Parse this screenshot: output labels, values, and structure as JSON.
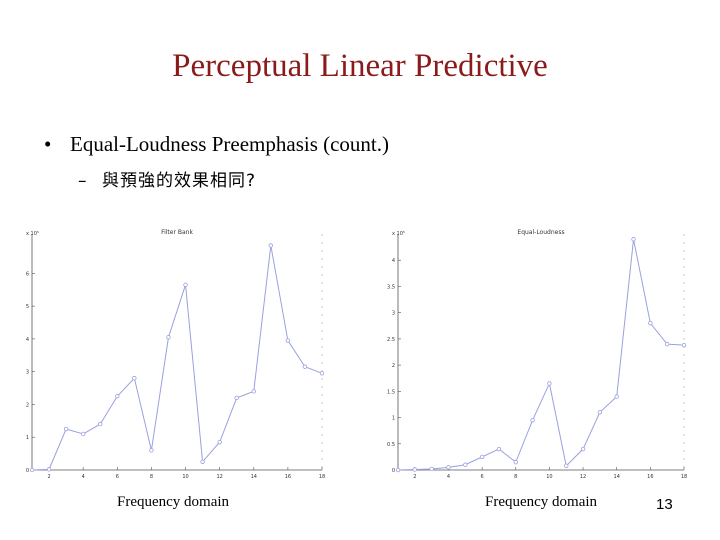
{
  "slide": {
    "title": "Perceptual Linear Predictive",
    "bullet_marker": "•",
    "bullet_text": "Equal-Loudness Preemphasis (count.)",
    "sub_marker": "–",
    "sub_text": "與預強的效果相同?",
    "page_number": "13"
  },
  "colors": {
    "title": "#8b1a1a",
    "series": "#9aa0e0",
    "axis": "#555555"
  },
  "chart_data": [
    {
      "type": "line",
      "title": "Filter Bank",
      "y_multiplier": "x 10⁵",
      "xlabel": "Frequency domain",
      "x": [
        1,
        2,
        3,
        4,
        5,
        6,
        7,
        8,
        9,
        10,
        11,
        12,
        13,
        14,
        15,
        16,
        17,
        18
      ],
      "values": [
        0,
        0.02,
        1.25,
        1.1,
        1.4,
        2.25,
        2.8,
        0.6,
        4.05,
        5.65,
        0.25,
        0.85,
        2.2,
        2.4,
        6.85,
        3.95,
        3.15,
        2.95
      ],
      "xticks": [
        2,
        4,
        6,
        8,
        10,
        12,
        14,
        16,
        18
      ],
      "yticks": [
        0,
        1,
        2,
        3,
        4,
        5,
        6
      ],
      "xlim": [
        1,
        18
      ],
      "ylim": [
        0,
        7.2
      ],
      "grid": false
    },
    {
      "type": "line",
      "title": "Equal-Loudness",
      "y_multiplier": "x 10⁵",
      "xlabel": "Frequency domain",
      "x": [
        1,
        2,
        3,
        4,
        5,
        6,
        7,
        8,
        9,
        10,
        11,
        12,
        13,
        14,
        15,
        16,
        17,
        18
      ],
      "values": [
        0,
        0.01,
        0.02,
        0.05,
        0.1,
        0.25,
        0.4,
        0.15,
        0.95,
        1.65,
        0.08,
        0.4,
        1.1,
        1.4,
        4.4,
        2.8,
        2.4,
        2.38
      ],
      "xticks": [
        2,
        4,
        6,
        8,
        10,
        12,
        14,
        16,
        18
      ],
      "yticks": [
        0,
        0.5,
        1,
        1.5,
        2,
        2.5,
        3,
        3.5,
        4
      ],
      "xlim": [
        1,
        18
      ],
      "ylim": [
        0,
        4.5
      ],
      "grid": false
    }
  ]
}
